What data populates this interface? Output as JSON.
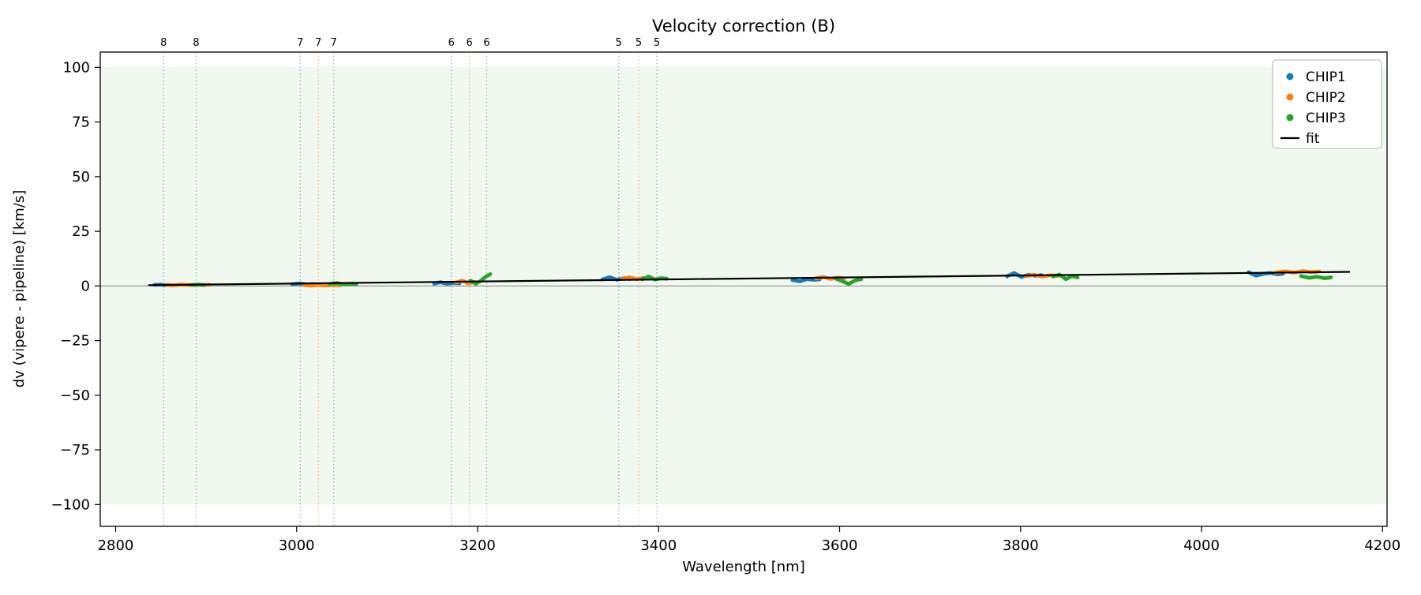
{
  "chart_data": {
    "type": "scatter",
    "title": "Velocity correction (B)",
    "xlabel": "Wavelength [nm]",
    "ylabel": "dv (vipere - pipeline) [km/s]",
    "xlim": [
      2783,
      4205
    ],
    "ylim": [
      -110,
      107
    ],
    "xticks": [
      2800,
      3000,
      3200,
      3400,
      3600,
      3800,
      4000,
      4200
    ],
    "yticks": [
      -100,
      -75,
      -50,
      -25,
      0,
      25,
      50,
      75,
      100
    ],
    "grid": false,
    "legend_position": "upper right",
    "shaded_band": {
      "ymin": -100,
      "ymax": 100,
      "color": "#2ca02c",
      "alpha": 0.07
    },
    "zero_line": {
      "y": 0,
      "color": "#7f7f7f"
    },
    "colors": {
      "CHIP1": "#1f77b4",
      "CHIP2": "#ff7f0e",
      "CHIP3": "#2ca02c",
      "fit": "#000000"
    },
    "legend": [
      {
        "label": "CHIP1",
        "type": "marker",
        "color": "#1f77b4"
      },
      {
        "label": "CHIP2",
        "type": "marker",
        "color": "#ff7f0e"
      },
      {
        "label": "CHIP3",
        "type": "marker",
        "color": "#2ca02c"
      },
      {
        "label": "fit",
        "type": "line",
        "color": "#000000"
      }
    ],
    "order_markers": [
      {
        "label": "8",
        "x": 2853,
        "color": "#1f77b4"
      },
      {
        "label": "8",
        "x": 2889,
        "color": "#2ca02c"
      },
      {
        "label": "7",
        "x": 3004,
        "color": "#1f77b4"
      },
      {
        "label": "7",
        "x": 3024,
        "color": "#ff7f0e"
      },
      {
        "label": "7",
        "x": 3041,
        "color": "#2ca02c"
      },
      {
        "label": "6",
        "x": 3171,
        "color": "#1f77b4"
      },
      {
        "label": "6",
        "x": 3191,
        "color": "#ff7f0e"
      },
      {
        "label": "6",
        "x": 3210,
        "color": "#2ca02c"
      },
      {
        "label": "5",
        "x": 3356,
        "color": "#1f77b4"
      },
      {
        "label": "5",
        "x": 3378,
        "color": "#ff7f0e"
      },
      {
        "label": "5",
        "x": 3398,
        "color": "#2ca02c"
      }
    ],
    "fit_line": [
      [
        2836,
        0.35
      ],
      [
        4164,
        6.45
      ]
    ],
    "series": [
      {
        "name": "CHIP1",
        "color": "#1f77b4",
        "segments": [
          [
            [
              2843,
              0.5
            ],
            [
              2849,
              0.6
            ],
            [
              2855,
              0.4
            ],
            [
              2860,
              0.5
            ]
          ],
          [
            [
              2995,
              0.8
            ],
            [
              3003,
              1.1
            ],
            [
              3011,
              0.7
            ],
            [
              3019,
              0.9
            ]
          ],
          [
            [
              3152,
              1.1
            ],
            [
              3159,
              1.7
            ],
            [
              3166,
              1.0
            ],
            [
              3173,
              1.4
            ],
            [
              3180,
              1.2
            ]
          ],
          [
            [
              3338,
              3.0
            ],
            [
              3346,
              4.0
            ],
            [
              3354,
              2.8
            ],
            [
              3362,
              3.6
            ],
            [
              3368,
              3.2
            ]
          ],
          [
            [
              3548,
              2.7
            ],
            [
              3556,
              2.1
            ],
            [
              3564,
              3.1
            ],
            [
              3572,
              2.8
            ],
            [
              3578,
              3.0
            ]
          ],
          [
            [
              3785,
              4.4
            ],
            [
              3793,
              5.9
            ],
            [
              3801,
              4.1
            ],
            [
              3809,
              5.1
            ],
            [
              3817,
              4.6
            ],
            [
              3823,
              5.0
            ]
          ],
          [
            [
              4052,
              6.3
            ],
            [
              4060,
              4.7
            ],
            [
              4068,
              5.5
            ],
            [
              4076,
              5.9
            ],
            [
              4084,
              5.3
            ],
            [
              4090,
              5.6
            ]
          ]
        ]
      },
      {
        "name": "CHIP2",
        "color": "#ff7f0e",
        "segments": [
          [
            [
              2856,
              0.5
            ],
            [
              2864,
              0.3
            ],
            [
              2872,
              0.6
            ],
            [
              2880,
              0.4
            ],
            [
              2888,
              0.5
            ],
            [
              2896,
              0.4
            ],
            [
              2904,
              0.5
            ]
          ],
          [
            [
              3008,
              0.4
            ],
            [
              3016,
              0.1
            ],
            [
              3024,
              0.5
            ],
            [
              3032,
              0.2
            ],
            [
              3040,
              0.4
            ],
            [
              3048,
              0.3
            ]
          ],
          [
            [
              3176,
              1.6
            ],
            [
              3183,
              2.4
            ],
            [
              3190,
              1.2
            ],
            [
              3197,
              1.9
            ]
          ],
          [
            [
              3360,
              3.3
            ],
            [
              3368,
              3.9
            ],
            [
              3376,
              3.1
            ],
            [
              3384,
              3.7
            ],
            [
              3390,
              3.4
            ]
          ],
          [
            [
              3574,
              3.5
            ],
            [
              3582,
              4.1
            ],
            [
              3590,
              3.2
            ],
            [
              3598,
              3.8
            ],
            [
              3605,
              3.5
            ]
          ],
          [
            [
              3806,
              4.5
            ],
            [
              3815,
              5.1
            ],
            [
              3824,
              4.3
            ],
            [
              3833,
              4.9
            ],
            [
              3842,
              4.6
            ]
          ],
          [
            [
              4082,
              6.1
            ],
            [
              4092,
              6.7
            ],
            [
              4102,
              6.1
            ],
            [
              4112,
              6.8
            ],
            [
              4122,
              6.3
            ],
            [
              4130,
              6.6
            ]
          ]
        ]
      },
      {
        "name": "CHIP3",
        "color": "#2ca02c",
        "segments": [
          [
            [
              2884,
              0.4
            ],
            [
              2891,
              0.6
            ],
            [
              2898,
              0.4
            ]
          ],
          [
            [
              3036,
              0.9
            ],
            [
              3044,
              1.3
            ],
            [
              3052,
              0.8
            ],
            [
              3060,
              1.0
            ],
            [
              3066,
              0.9
            ]
          ],
          [
            [
              3192,
              2.4
            ],
            [
              3198,
              1.0
            ],
            [
              3203,
              2.2
            ],
            [
              3209,
              4.2
            ],
            [
              3214,
              5.4
            ]
          ],
          [
            [
              3382,
              3.1
            ],
            [
              3389,
              4.3
            ],
            [
              3396,
              2.9
            ],
            [
              3403,
              3.6
            ],
            [
              3409,
              3.3
            ]
          ],
          [
            [
              3596,
              3.3
            ],
            [
              3603,
              2.2
            ],
            [
              3610,
              0.9
            ],
            [
              3617,
              2.5
            ],
            [
              3624,
              3.1
            ]
          ],
          [
            [
              3836,
              4.3
            ],
            [
              3843,
              5.2
            ],
            [
              3850,
              3.1
            ],
            [
              3857,
              4.5
            ],
            [
              3863,
              3.9
            ]
          ],
          [
            [
              4110,
              4.5
            ],
            [
              4119,
              3.7
            ],
            [
              4128,
              4.2
            ],
            [
              4136,
              3.5
            ],
            [
              4143,
              3.9
            ]
          ]
        ]
      }
    ]
  }
}
